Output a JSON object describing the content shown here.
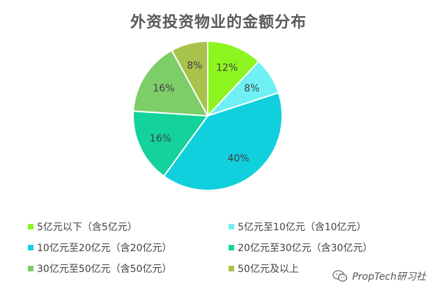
{
  "chart_data": {
    "type": "pie",
    "title": "外资投资物业的金额分布",
    "slices": [
      {
        "label": "5亿元以下（含5亿元）",
        "value": 12,
        "value_label": "12%",
        "color": "#8cf51f"
      },
      {
        "label": "5亿元至10亿元（含10亿元）",
        "value": 8,
        "value_label": "8%",
        "color": "#6ff0f5"
      },
      {
        "label": "10亿元至20亿元（含20亿元）",
        "value": 40,
        "value_label": "40%",
        "color": "#0fd0dc"
      },
      {
        "label": "20亿元至30亿元（含30亿元）",
        "value": 16,
        "value_label": "16%",
        "color": "#14d29b"
      },
      {
        "label": "30亿元至50亿元（含50亿元）",
        "value": 16,
        "value_label": "16%",
        "color": "#7dcd69"
      },
      {
        "label": "50亿元及以上",
        "value": 8,
        "value_label": "8%",
        "color": "#a8c34b"
      }
    ],
    "legend_position": "bottom"
  },
  "watermark": {
    "text": "PropTech研习社",
    "icon": "wechat-icon"
  }
}
